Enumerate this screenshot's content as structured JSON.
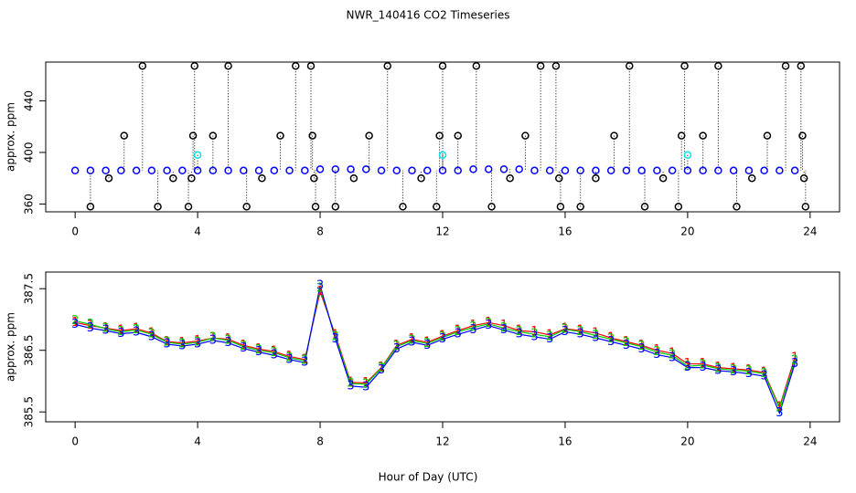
{
  "chart_data": [
    {
      "type": "scatter",
      "title": "NWR_140416  CO2 Timeseries",
      "ylabel": "approx. ppm",
      "xlim": [
        -0.96,
        24.96
      ],
      "xticks": [
        0,
        4,
        8,
        12,
        16,
        20,
        24
      ],
      "ylim": [
        354,
        470
      ],
      "yticks": [
        360,
        400,
        440
      ],
      "series": [
        {
          "color": "#0000ff",
          "x": [
            0,
            0.5,
            1,
            1.5,
            2,
            2.5,
            3,
            3.5,
            4,
            4.5,
            5,
            5.5,
            6,
            6.5,
            7,
            7.5,
            8,
            8.5,
            9,
            9.5,
            10,
            10.5,
            11,
            11.5,
            12,
            12.5,
            13,
            13.5,
            14,
            14.5,
            15,
            15.5,
            16,
            16.5,
            17,
            17.5,
            18,
            18.5,
            19,
            19.5,
            20,
            20.5,
            21,
            21.5,
            22,
            22.5,
            23,
            23.5
          ],
          "values": [
            386,
            386,
            386,
            386,
            386,
            386,
            386,
            386,
            386,
            386,
            386,
            386,
            386,
            386,
            386,
            386,
            387,
            387,
            387,
            387,
            386,
            386,
            386,
            386,
            386,
            386,
            387,
            387,
            387,
            387,
            386,
            386,
            386,
            386,
            386,
            386,
            386,
            386,
            386,
            386,
            386,
            386,
            386,
            386,
            386,
            386,
            386,
            386
          ]
        },
        {
          "color": "#000000",
          "x": [
            0.5,
            1.1,
            1.6,
            2.2,
            2.7,
            3.2,
            3.7,
            3.8,
            3.85,
            3.9,
            4.5,
            5.0,
            5.6,
            6.1,
            6.7,
            7.2,
            7.7,
            7.75,
            7.8,
            7.85,
            8.5,
            9.1,
            9.6,
            10.2,
            10.7,
            11.3,
            11.8,
            11.9,
            12.0,
            12.5,
            13.1,
            13.6,
            14.2,
            14.7,
            15.2,
            15.7,
            15.8,
            15.85,
            16.5,
            17.0,
            17.6,
            18.1,
            18.6,
            19.2,
            19.7,
            19.8,
            19.9,
            20.5,
            21.0,
            21.6,
            22.1,
            22.6,
            23.2,
            23.7,
            23.75,
            23.8,
            23.85
          ],
          "values": [
            358,
            380,
            413,
            467,
            358,
            380,
            358,
            380,
            413,
            467,
            413,
            467,
            358,
            380,
            413,
            467,
            467,
            413,
            380,
            358,
            358,
            380,
            413,
            467,
            358,
            380,
            358,
            413,
            467,
            413,
            467,
            358,
            380,
            413,
            467,
            467,
            380,
            358,
            358,
            380,
            413,
            467,
            358,
            380,
            358,
            413,
            467,
            413,
            467,
            358,
            380,
            413,
            467,
            467,
            413,
            380,
            358
          ]
        },
        {
          "color": "#00e5ee",
          "x": [
            4.0,
            12.0,
            20.0
          ],
          "values": [
            398,
            398,
            398
          ]
        }
      ]
    },
    {
      "type": "line",
      "xlabel": "Hour of Day (UTC)",
      "ylabel": "approx. ppm",
      "xlim": [
        -0.96,
        24.96
      ],
      "xticks": [
        0,
        4,
        8,
        12,
        16,
        20,
        24
      ],
      "ylim": [
        385.34,
        387.77
      ],
      "yticks": [
        385.5,
        386.5,
        387.5
      ],
      "x": [
        0,
        0.5,
        1,
        1.5,
        2,
        2.5,
        3,
        3.5,
        4,
        4.5,
        5,
        5.5,
        6,
        6.5,
        7,
        7.5,
        8,
        8.5,
        9,
        9.5,
        10,
        10.5,
        11,
        11.5,
        12,
        12.5,
        13,
        13.5,
        14,
        14.5,
        15,
        15.5,
        16,
        16.5,
        17,
        17.5,
        18,
        18.5,
        19,
        19.5,
        20,
        20.5,
        21,
        21.5,
        22,
        22.5,
        23,
        23.5
      ],
      "series": [
        {
          "marker": "1",
          "color": "#ff0000",
          "values": [
            386.95,
            386.9,
            386.86,
            386.82,
            386.85,
            386.78,
            386.64,
            386.62,
            386.65,
            386.7,
            386.68,
            386.58,
            386.52,
            386.48,
            386.4,
            386.35,
            387.45,
            386.75,
            385.98,
            385.97,
            386.22,
            386.58,
            386.68,
            386.63,
            386.73,
            386.82,
            386.9,
            386.95,
            386.9,
            386.82,
            386.8,
            386.75,
            386.85,
            386.82,
            386.78,
            386.7,
            386.64,
            386.58,
            386.5,
            386.45,
            386.28,
            386.28,
            386.22,
            386.2,
            386.18,
            386.14,
            385.58,
            386.38
          ]
        },
        {
          "marker": "2",
          "color": "#00cd00",
          "values": [
            386.98,
            386.92,
            386.85,
            386.8,
            386.83,
            386.76,
            386.63,
            386.6,
            386.63,
            386.7,
            386.66,
            386.56,
            386.5,
            386.46,
            386.38,
            386.33,
            387.5,
            386.72,
            385.96,
            385.95,
            386.21,
            386.56,
            386.66,
            386.61,
            386.71,
            386.8,
            386.87,
            386.93,
            386.86,
            386.8,
            386.76,
            386.72,
            386.84,
            386.8,
            386.74,
            386.68,
            386.62,
            386.56,
            386.47,
            386.42,
            386.24,
            386.26,
            386.2,
            386.18,
            386.16,
            386.12,
            385.56,
            386.33
          ]
        },
        {
          "marker": "3",
          "color": "#0000ff",
          "values": [
            386.92,
            386.86,
            386.82,
            386.77,
            386.79,
            386.72,
            386.6,
            386.57,
            386.6,
            386.66,
            386.62,
            386.53,
            386.47,
            386.42,
            386.35,
            386.3,
            387.55,
            386.68,
            385.92,
            385.9,
            386.18,
            386.52,
            386.63,
            386.58,
            386.68,
            386.76,
            386.83,
            386.9,
            386.83,
            386.76,
            386.72,
            386.68,
            386.8,
            386.76,
            386.7,
            386.64,
            386.58,
            386.52,
            386.43,
            386.38,
            386.22,
            386.22,
            386.17,
            386.15,
            386.12,
            386.08,
            385.48,
            386.28
          ]
        }
      ]
    }
  ]
}
